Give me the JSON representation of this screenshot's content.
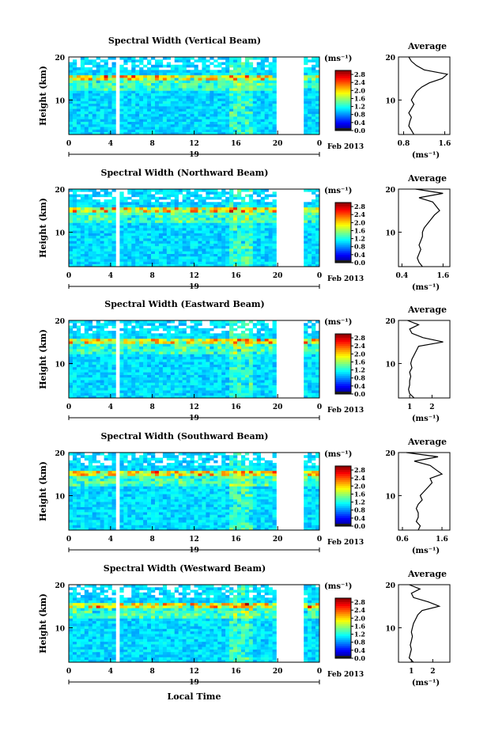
{
  "chart_data": [
    {
      "type": "heatmap",
      "title": "Spectral Width (Vertical Beam)",
      "ylabel": "Height (km)",
      "yticks": [
        "20",
        "10"
      ],
      "xticks": [
        "0",
        "4",
        "8",
        "12",
        "16",
        "20",
        "0"
      ],
      "date_label": "19",
      "month_label": "Feb 2013",
      "xlim": [
        0,
        24
      ],
      "ylim": [
        2,
        20
      ],
      "colorbar": {
        "unit_label": "(ms⁻¹)",
        "ticks": [
          "2.8",
          "2.4",
          "2.0",
          "1.6",
          "1.2",
          "0.8",
          "0.4",
          "0.0"
        ],
        "range": [
          0.0,
          3.0
        ]
      },
      "profile": {
        "title": "Average",
        "xlabel": "(ms⁻¹)",
        "xticks": [
          "0.8",
          "1.6"
        ],
        "xlim": [
          0.7,
          1.7
        ],
        "yticks": [
          "20",
          "10"
        ],
        "heights": [
          2,
          3,
          4,
          5,
          6,
          7,
          8,
          9,
          10,
          11,
          12,
          13,
          14,
          15,
          16,
          17,
          18,
          19,
          20
        ],
        "values": [
          1.0,
          0.95,
          0.9,
          0.92,
          0.95,
          0.9,
          0.95,
          1.0,
          0.95,
          1.0,
          1.05,
          1.15,
          1.3,
          1.55,
          1.65,
          1.2,
          1.05,
          0.95,
          0.9
        ]
      },
      "gaps": [
        [
          4.6,
          4.9
        ],
        [
          5.5,
          5.8
        ],
        [
          17.5,
          17.7
        ],
        [
          19.8,
          22.5
        ]
      ]
    },
    {
      "type": "heatmap",
      "title": "Spectral Width (Northward Beam)",
      "ylabel": "Height (km)",
      "yticks": [
        "20",
        "10"
      ],
      "xticks": [
        "0",
        "4",
        "8",
        "12",
        "16",
        "20",
        "0"
      ],
      "date_label": "19",
      "month_label": "Feb 2013",
      "xlim": [
        0,
        24
      ],
      "ylim": [
        2,
        20
      ],
      "colorbar": {
        "unit_label": "(ms⁻¹)",
        "ticks": [
          "2.8",
          "2.4",
          "2.0",
          "1.6",
          "1.2",
          "0.8",
          "0.4",
          "0.0"
        ],
        "range": [
          0.0,
          3.0
        ]
      },
      "profile": {
        "title": "Average",
        "xlabel": "(ms⁻¹)",
        "xticks": [
          "0.4",
          "1.6"
        ],
        "xlim": [
          0.3,
          1.8
        ],
        "yticks": [
          "20",
          "10"
        ],
        "heights": [
          2,
          3,
          4,
          5,
          6,
          7,
          8,
          9,
          10,
          11,
          12,
          13,
          14,
          15,
          16,
          17,
          18,
          19,
          20
        ],
        "values": [
          1.0,
          0.9,
          0.85,
          0.9,
          0.95,
          0.9,
          0.95,
          1.0,
          1.0,
          1.05,
          1.15,
          1.25,
          1.35,
          1.5,
          1.4,
          1.3,
          0.9,
          1.6,
          0.8
        ]
      },
      "gaps": [
        [
          4.6,
          4.9
        ],
        [
          5.5,
          5.8
        ],
        [
          19.8,
          22.5
        ]
      ]
    },
    {
      "type": "heatmap",
      "title": "Spectral Width (Eastward Beam)",
      "ylabel": "Height (km)",
      "yticks": [
        "20",
        "10"
      ],
      "xticks": [
        "0",
        "4",
        "8",
        "12",
        "16",
        "20",
        "0"
      ],
      "date_label": "19",
      "month_label": "Feb 2013",
      "xlim": [
        0,
        24
      ],
      "ylim": [
        2,
        20
      ],
      "colorbar": {
        "unit_label": "(ms⁻¹)",
        "ticks": [
          "2.8",
          "2.4",
          "2.0",
          "1.6",
          "1.2",
          "0.8",
          "0.4",
          "0.0"
        ],
        "range": [
          0.0,
          3.0
        ]
      },
      "profile": {
        "title": "Average",
        "xlabel": "(ms⁻¹)",
        "xticks": [
          "1",
          "2"
        ],
        "xlim": [
          0.5,
          2.8
        ],
        "yticks": [
          "20",
          "10"
        ],
        "heights": [
          2,
          3,
          4,
          5,
          6,
          7,
          8,
          9,
          10,
          11,
          12,
          13,
          14,
          15,
          16,
          17,
          18,
          19,
          20
        ],
        "values": [
          1.2,
          1.0,
          0.95,
          1.0,
          1.0,
          1.05,
          1.0,
          1.1,
          1.05,
          1.1,
          1.2,
          1.3,
          1.4,
          2.5,
          1.6,
          1.1,
          1.0,
          1.4,
          0.9
        ]
      },
      "gaps": [
        [
          4.6,
          4.9
        ],
        [
          5.5,
          5.8
        ],
        [
          17.5,
          17.7
        ],
        [
          19.8,
          22.5
        ]
      ]
    },
    {
      "type": "heatmap",
      "title": "Spectral Width (Southward Beam)",
      "ylabel": "Height (km)",
      "yticks": [
        "20",
        "10"
      ],
      "xticks": [
        "0",
        "4",
        "8",
        "12",
        "16",
        "20",
        "0"
      ],
      "date_label": "19",
      "month_label": "Feb 2013",
      "xlim": [
        0,
        24
      ],
      "ylim": [
        2,
        20
      ],
      "colorbar": {
        "unit_label": "(ms⁻¹)",
        "ticks": [
          "2.8",
          "2.4",
          "2.0",
          "1.6",
          "1.2",
          "0.8",
          "0.4",
          "0.0"
        ],
        "range": [
          0.0,
          3.0
        ]
      },
      "profile": {
        "title": "Average",
        "xlabel": "(ms⁻¹)",
        "xticks": [
          "0.6",
          "1.6"
        ],
        "xlim": [
          0.5,
          1.8
        ],
        "yticks": [
          "20",
          "10"
        ],
        "heights": [
          2,
          3,
          4,
          5,
          6,
          7,
          8,
          9,
          10,
          11,
          12,
          13,
          14,
          15,
          16,
          17,
          18,
          19,
          20
        ],
        "values": [
          1.0,
          1.05,
          0.95,
          1.0,
          1.0,
          0.95,
          1.0,
          1.1,
          1.05,
          1.15,
          1.25,
          1.35,
          1.3,
          1.6,
          1.45,
          1.3,
          0.9,
          1.5,
          0.7
        ]
      },
      "gaps": [
        [
          4.6,
          4.9
        ],
        [
          5.5,
          5.8
        ],
        [
          17.5,
          17.7
        ],
        [
          19.8,
          22.5
        ]
      ]
    },
    {
      "type": "heatmap",
      "title": "Spectral Width (Westward Beam)",
      "ylabel": "Height (km)",
      "yticks": [
        "20",
        "10"
      ],
      "xticks": [
        "0",
        "4",
        "8",
        "12",
        "16",
        "20",
        "0"
      ],
      "date_label": "19",
      "month_label": "Feb 2013",
      "xlabel": "Local Time",
      "xlim": [
        0,
        24
      ],
      "ylim": [
        2,
        20
      ],
      "colorbar": {
        "unit_label": "(ms⁻¹)",
        "ticks": [
          "2.8",
          "2.4",
          "2.0",
          "1.6",
          "1.2",
          "0.8",
          "0.4",
          "0.0"
        ],
        "range": [
          0.0,
          3.0
        ]
      },
      "profile": {
        "title": "Average",
        "xlabel": "(ms⁻¹)",
        "xticks": [
          "1",
          "2"
        ],
        "xlim": [
          0.4,
          2.8
        ],
        "yticks": [
          "20",
          "10"
        ],
        "heights": [
          2,
          3,
          4,
          5,
          6,
          7,
          8,
          9,
          10,
          11,
          12,
          13,
          14,
          15,
          16,
          17,
          18,
          19,
          20
        ],
        "values": [
          1.1,
          0.9,
          0.95,
          1.0,
          0.95,
          1.0,
          1.05,
          1.0,
          1.05,
          1.1,
          1.2,
          1.3,
          1.5,
          2.3,
          1.8,
          1.1,
          1.0,
          1.4,
          0.9
        ]
      },
      "gaps": [
        [
          4.6,
          4.9
        ],
        [
          5.5,
          5.8
        ],
        [
          17.5,
          17.7
        ],
        [
          19.8,
          22.5
        ]
      ]
    }
  ]
}
